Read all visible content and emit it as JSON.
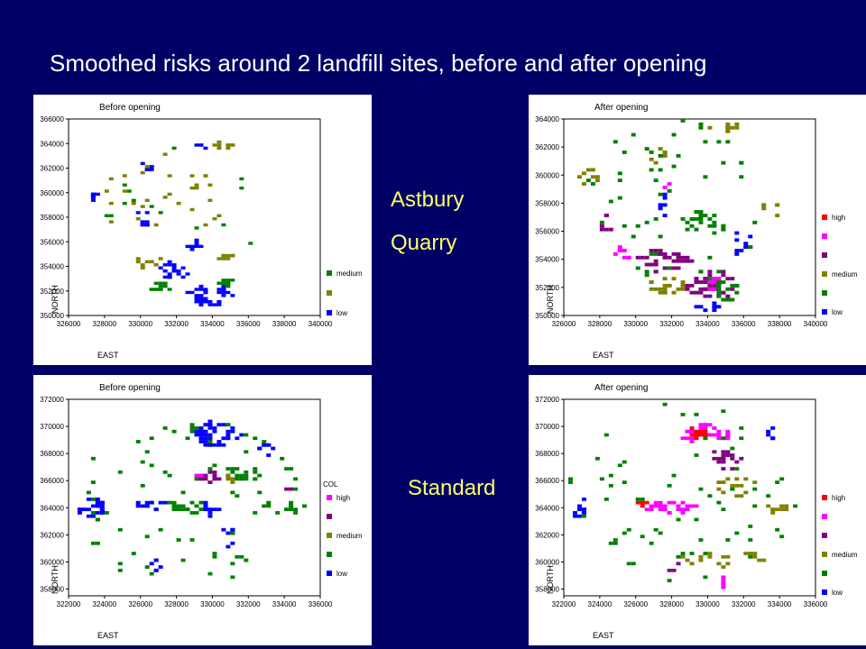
{
  "page": {
    "title": "Smoothed risks around 2 landfill sites, before and after opening",
    "site_labels": [
      "Astbury",
      "Quarry",
      "Standard"
    ]
  },
  "chart_data": [
    {
      "type": "heatmap",
      "title": "Before opening",
      "xlabel": "EAST",
      "ylabel": "NORTH",
      "xticks": [
        326000,
        328000,
        330000,
        332000,
        334000,
        336000,
        338000,
        340000
      ],
      "yticks": [
        350000,
        352000,
        354000,
        356000,
        358000,
        360000,
        362000,
        364000,
        366000
      ],
      "xlim": [
        326000,
        340000
      ],
      "ylim": [
        350000,
        366000
      ],
      "legend_title": "",
      "legend": [
        {
          "label": "medium",
          "color": "#008000"
        },
        {
          "label": "",
          "color": "#808000"
        },
        {
          "label": "low",
          "color": "#0000ff"
        }
      ],
      "clusters": [
        {
          "color": "#0000ff",
          "cx": 333600,
          "cy": 351500,
          "rx": 1300,
          "ry": 900,
          "n": 40
        },
        {
          "color": "#0000ff",
          "cx": 331800,
          "cy": 353500,
          "rx": 900,
          "ry": 700,
          "n": 22
        },
        {
          "color": "#0000ff",
          "cx": 332700,
          "cy": 355600,
          "rx": 500,
          "ry": 400,
          "n": 10
        },
        {
          "color": "#0000ff",
          "cx": 330200,
          "cy": 357800,
          "rx": 500,
          "ry": 900,
          "n": 10
        },
        {
          "color": "#0000ff",
          "cx": 327100,
          "cy": 359700,
          "rx": 300,
          "ry": 500,
          "n": 7
        },
        {
          "color": "#0000ff",
          "cx": 333200,
          "cy": 363600,
          "rx": 300,
          "ry": 300,
          "n": 4
        },
        {
          "color": "#0000ff",
          "cx": 330300,
          "cy": 362200,
          "rx": 300,
          "ry": 500,
          "n": 5
        },
        {
          "color": "#008000",
          "cx": 331000,
          "cy": 352200,
          "rx": 700,
          "ry": 500,
          "n": 12
        },
        {
          "color": "#008000",
          "cx": 334500,
          "cy": 352500,
          "rx": 500,
          "ry": 400,
          "n": 8
        },
        {
          "color": "#808000",
          "cx": 330300,
          "cy": 354200,
          "rx": 800,
          "ry": 500,
          "n": 10
        },
        {
          "color": "#808000",
          "cx": 334800,
          "cy": 354800,
          "rx": 700,
          "ry": 400,
          "n": 10
        },
        {
          "color": "#808000",
          "cx": 334300,
          "cy": 363700,
          "rx": 700,
          "ry": 400,
          "n": 9
        },
        {
          "color": "#808000",
          "cx": 331000,
          "cy": 359500,
          "rx": 3500,
          "ry": 3500,
          "n": 30
        },
        {
          "color": "#008000",
          "cx": 332000,
          "cy": 358000,
          "rx": 4500,
          "ry": 5500,
          "n": 14
        }
      ]
    },
    {
      "type": "heatmap",
      "title": "After opening",
      "xlabel": "EAST",
      "ylabel": "NORTH",
      "xticks": [
        326000,
        328000,
        330000,
        332000,
        334000,
        336000,
        338000,
        340000
      ],
      "yticks": [
        350000,
        352000,
        354000,
        356000,
        358000,
        360000,
        362000,
        364000
      ],
      "xlim": [
        326000,
        340000
      ],
      "ylim": [
        350000,
        364000
      ],
      "legend_title": "",
      "legend": [
        {
          "label": "high",
          "color": "#ff0000"
        },
        {
          "label": "",
          "color": "#ff00ff"
        },
        {
          "label": "",
          "color": "#800080"
        },
        {
          "label": "medium",
          "color": "#808000"
        },
        {
          "label": "",
          "color": "#008000"
        },
        {
          "label": "low",
          "color": "#0000ff"
        }
      ],
      "clusters": [
        {
          "color": "#800080",
          "cx": 334200,
          "cy": 352000,
          "rx": 1400,
          "ry": 1100,
          "n": 45
        },
        {
          "color": "#ff00ff",
          "cx": 334300,
          "cy": 352200,
          "rx": 500,
          "ry": 400,
          "n": 10
        },
        {
          "color": "#ff0000",
          "cx": 334400,
          "cy": 352100,
          "rx": 150,
          "ry": 150,
          "n": 2
        },
        {
          "color": "#800080",
          "cx": 331500,
          "cy": 353800,
          "rx": 1500,
          "ry": 800,
          "n": 35
        },
        {
          "color": "#ff00ff",
          "cx": 329300,
          "cy": 354300,
          "rx": 500,
          "ry": 400,
          "n": 8
        },
        {
          "color": "#808000",
          "cx": 331500,
          "cy": 352000,
          "rx": 1200,
          "ry": 600,
          "n": 20
        },
        {
          "color": "#008000",
          "cx": 335000,
          "cy": 351700,
          "rx": 700,
          "ry": 800,
          "n": 15
        },
        {
          "color": "#0000ff",
          "cx": 334000,
          "cy": 350500,
          "rx": 700,
          "ry": 300,
          "n": 8
        },
        {
          "color": "#0000ff",
          "cx": 335800,
          "cy": 355000,
          "rx": 600,
          "ry": 800,
          "n": 10
        },
        {
          "color": "#0000ff",
          "cx": 331500,
          "cy": 357800,
          "rx": 300,
          "ry": 900,
          "n": 7
        },
        {
          "color": "#008000",
          "cx": 333600,
          "cy": 356500,
          "rx": 1200,
          "ry": 800,
          "n": 22
        },
        {
          "color": "#808000",
          "cx": 334800,
          "cy": 363300,
          "rx": 800,
          "ry": 400,
          "n": 10
        },
        {
          "color": "#808000",
          "cx": 327300,
          "cy": 359600,
          "rx": 500,
          "ry": 700,
          "n": 8
        },
        {
          "color": "#808000",
          "cx": 331200,
          "cy": 361200,
          "rx": 400,
          "ry": 700,
          "n": 8
        },
        {
          "color": "#808000",
          "cx": 337400,
          "cy": 357500,
          "rx": 500,
          "ry": 500,
          "n": 6
        },
        {
          "color": "#800080",
          "cx": 328300,
          "cy": 356200,
          "rx": 400,
          "ry": 800,
          "n": 6
        },
        {
          "color": "#ff00ff",
          "cx": 331600,
          "cy": 359000,
          "rx": 200,
          "ry": 300,
          "n": 3
        },
        {
          "color": "#008000",
          "cx": 332000,
          "cy": 358000,
          "rx": 5000,
          "ry": 6000,
          "n": 55
        }
      ]
    },
    {
      "type": "heatmap",
      "title": "Before opening",
      "xlabel": "EAST",
      "ylabel": "NORTH",
      "xticks": [
        322000,
        324000,
        326000,
        328000,
        330000,
        332000,
        334000,
        336000
      ],
      "yticks": [
        358000,
        360000,
        362000,
        364000,
        366000,
        368000,
        370000,
        372000
      ],
      "xlim": [
        322000,
        336000
      ],
      "ylim": [
        357500,
        372000
      ],
      "legend_title": "COL",
      "legend": [
        {
          "label": "high",
          "color": "#ff00ff"
        },
        {
          "label": "",
          "color": "#800080"
        },
        {
          "label": "medium",
          "color": "#808000"
        },
        {
          "label": "",
          "color": "#008000"
        },
        {
          "label": "low",
          "color": "#0000ff"
        }
      ],
      "clusters": [
        {
          "color": "#0000ff",
          "cx": 330000,
          "cy": 369300,
          "rx": 1500,
          "ry": 900,
          "n": 45
        },
        {
          "color": "#0000ff",
          "cx": 323200,
          "cy": 363800,
          "rx": 800,
          "ry": 800,
          "n": 30
        },
        {
          "color": "#0000ff",
          "cx": 326500,
          "cy": 364100,
          "rx": 800,
          "ry": 400,
          "n": 12
        },
        {
          "color": "#0000ff",
          "cx": 329500,
          "cy": 363800,
          "rx": 700,
          "ry": 500,
          "n": 10
        },
        {
          "color": "#0000ff",
          "cx": 330800,
          "cy": 361800,
          "rx": 300,
          "ry": 1000,
          "n": 8
        },
        {
          "color": "#0000ff",
          "cx": 332800,
          "cy": 368200,
          "rx": 500,
          "ry": 600,
          "n": 8
        },
        {
          "color": "#0000ff",
          "cx": 326800,
          "cy": 359500,
          "rx": 400,
          "ry": 600,
          "n": 6
        },
        {
          "color": "#800080",
          "cx": 329800,
          "cy": 366100,
          "rx": 700,
          "ry": 400,
          "n": 14
        },
        {
          "color": "#ff00ff",
          "cx": 329000,
          "cy": 366200,
          "rx": 200,
          "ry": 200,
          "n": 4
        },
        {
          "color": "#008000",
          "cx": 328400,
          "cy": 364000,
          "rx": 1000,
          "ry": 500,
          "n": 22
        },
        {
          "color": "#008000",
          "cx": 331500,
          "cy": 366400,
          "rx": 1000,
          "ry": 600,
          "n": 18
        },
        {
          "color": "#008000",
          "cx": 334500,
          "cy": 363900,
          "rx": 500,
          "ry": 400,
          "n": 8
        },
        {
          "color": "#808000",
          "cx": 331000,
          "cy": 366000,
          "rx": 400,
          "ry": 400,
          "n": 4
        },
        {
          "color": "#800080",
          "cx": 334300,
          "cy": 365200,
          "rx": 200,
          "ry": 200,
          "n": 2
        },
        {
          "color": "#008000",
          "cx": 328500,
          "cy": 364500,
          "rx": 6500,
          "ry": 6500,
          "n": 70
        }
      ]
    },
    {
      "type": "heatmap",
      "title": "After opening",
      "xlabel": "EAST",
      "ylabel": "NORTH",
      "xticks": [
        322000,
        324000,
        326000,
        328000,
        330000,
        332000,
        334000,
        336000
      ],
      "yticks": [
        358000,
        360000,
        362000,
        364000,
        366000,
        368000,
        370000,
        372000
      ],
      "xlim": [
        322000,
        336000
      ],
      "ylim": [
        357500,
        372000
      ],
      "legend_title": "",
      "legend": [
        {
          "label": "high",
          "color": "#ff0000"
        },
        {
          "label": "",
          "color": "#ff00ff"
        },
        {
          "label": "",
          "color": "#800080"
        },
        {
          "label": "medium",
          "color": "#808000"
        },
        {
          "label": "",
          "color": "#008000"
        },
        {
          "label": "low",
          "color": "#0000ff"
        }
      ],
      "clusters": [
        {
          "color": "#ff00ff",
          "cx": 329800,
          "cy": 369300,
          "rx": 1300,
          "ry": 800,
          "n": 35
        },
        {
          "color": "#ff0000",
          "cx": 329300,
          "cy": 369400,
          "rx": 500,
          "ry": 400,
          "n": 12
        },
        {
          "color": "#800080",
          "cx": 331000,
          "cy": 367500,
          "rx": 900,
          "ry": 800,
          "n": 18
        },
        {
          "color": "#ff00ff",
          "cx": 327800,
          "cy": 363900,
          "rx": 1400,
          "ry": 400,
          "n": 28
        },
        {
          "color": "#ff0000",
          "cx": 326300,
          "cy": 364200,
          "rx": 300,
          "ry": 200,
          "n": 5
        },
        {
          "color": "#0000ff",
          "cx": 322800,
          "cy": 363800,
          "rx": 400,
          "ry": 700,
          "n": 12
        },
        {
          "color": "#0000ff",
          "cx": 333400,
          "cy": 369300,
          "rx": 400,
          "ry": 400,
          "n": 6
        },
        {
          "color": "#808000",
          "cx": 331500,
          "cy": 365500,
          "rx": 1200,
          "ry": 700,
          "n": 16
        },
        {
          "color": "#808000",
          "cx": 333800,
          "cy": 363800,
          "rx": 700,
          "ry": 400,
          "n": 10
        },
        {
          "color": "#808000",
          "cx": 330000,
          "cy": 360000,
          "rx": 1500,
          "ry": 900,
          "n": 12
        },
        {
          "color": "#808000",
          "cx": 332500,
          "cy": 360300,
          "rx": 600,
          "ry": 500,
          "n": 7
        },
        {
          "color": "#ff00ff",
          "cx": 330700,
          "cy": 358400,
          "rx": 200,
          "ry": 400,
          "n": 4
        },
        {
          "color": "#800080",
          "cx": 328000,
          "cy": 359600,
          "rx": 500,
          "ry": 300,
          "n": 3
        },
        {
          "color": "#008000",
          "cx": 328500,
          "cy": 365000,
          "rx": 6500,
          "ry": 6500,
          "n": 65
        }
      ]
    }
  ]
}
